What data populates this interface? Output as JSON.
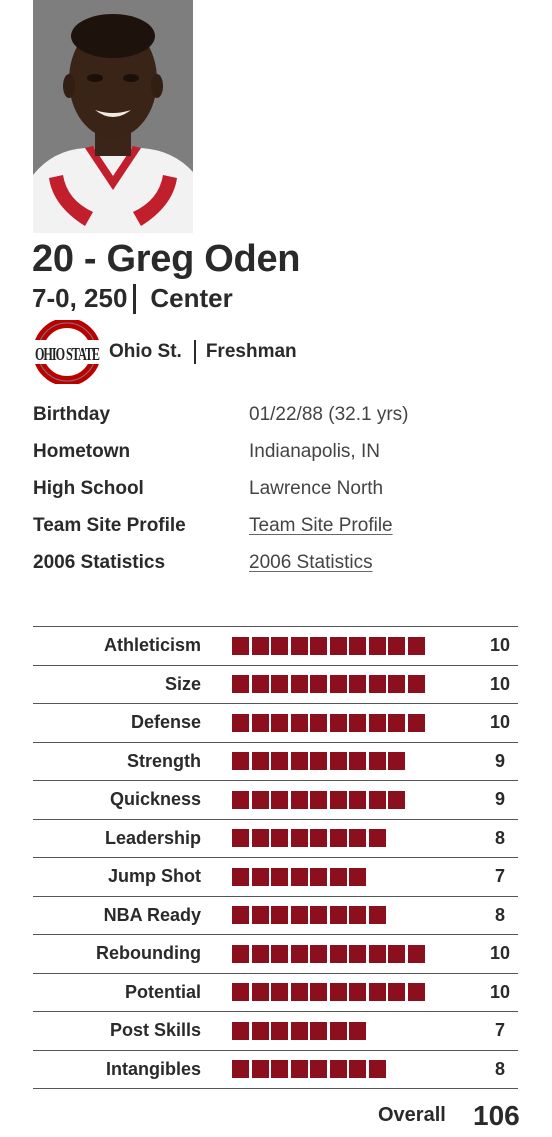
{
  "player": {
    "title": "20 - Greg Oden",
    "height_weight": "7-0, 250",
    "position": "Center"
  },
  "school": {
    "logo_text": "OHIO STATE",
    "name": "Ohio St.",
    "year": "Freshman"
  },
  "info": [
    {
      "label": "Birthday",
      "value": "01/22/88 (32.1 yrs)",
      "link": false
    },
    {
      "label": "Hometown",
      "value": "Indianapolis, IN",
      "link": false
    },
    {
      "label": "High School",
      "value": "Lawrence North",
      "link": false
    },
    {
      "label": "Team Site Profile",
      "value": "Team Site Profile",
      "link": true
    },
    {
      "label": "2006 Statistics",
      "value": "2006 Statistics",
      "link": true
    }
  ],
  "ratings": [
    {
      "label": "Athleticism",
      "value": 10
    },
    {
      "label": "Size",
      "value": 10
    },
    {
      "label": "Defense",
      "value": 10
    },
    {
      "label": "Strength",
      "value": 9
    },
    {
      "label": "Quickness",
      "value": 9
    },
    {
      "label": "Leadership",
      "value": 8
    },
    {
      "label": "Jump Shot",
      "value": 7
    },
    {
      "label": "NBA Ready",
      "value": 8
    },
    {
      "label": "Rebounding",
      "value": 10
    },
    {
      "label": "Potential",
      "value": 10
    },
    {
      "label": "Post Skills",
      "value": 7
    },
    {
      "label": "Intangibles",
      "value": 8
    }
  ],
  "overall": {
    "label": "Overall",
    "value": "106"
  },
  "colors": {
    "bar": "#8b0f1c",
    "logo_red": "#bb0000"
  }
}
